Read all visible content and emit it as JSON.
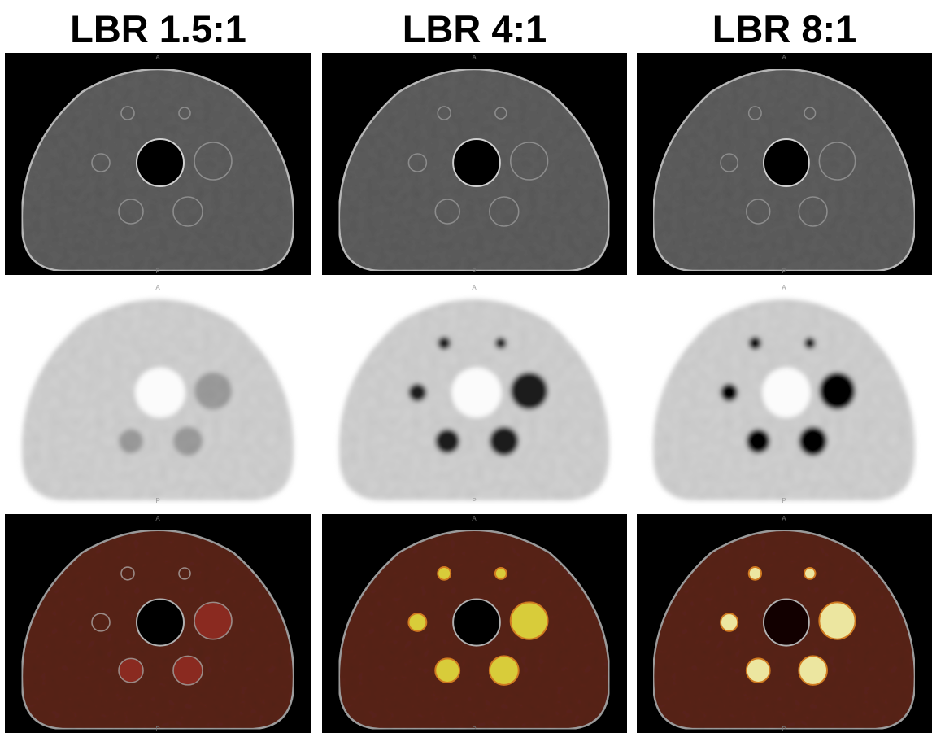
{
  "columns": [
    {
      "title": "LBR 1.5:1"
    },
    {
      "title": "LBR 4:1"
    },
    {
      "title": "LBR 8:1"
    }
  ],
  "orientation": {
    "anterior": "A",
    "posterior": "P"
  }
}
